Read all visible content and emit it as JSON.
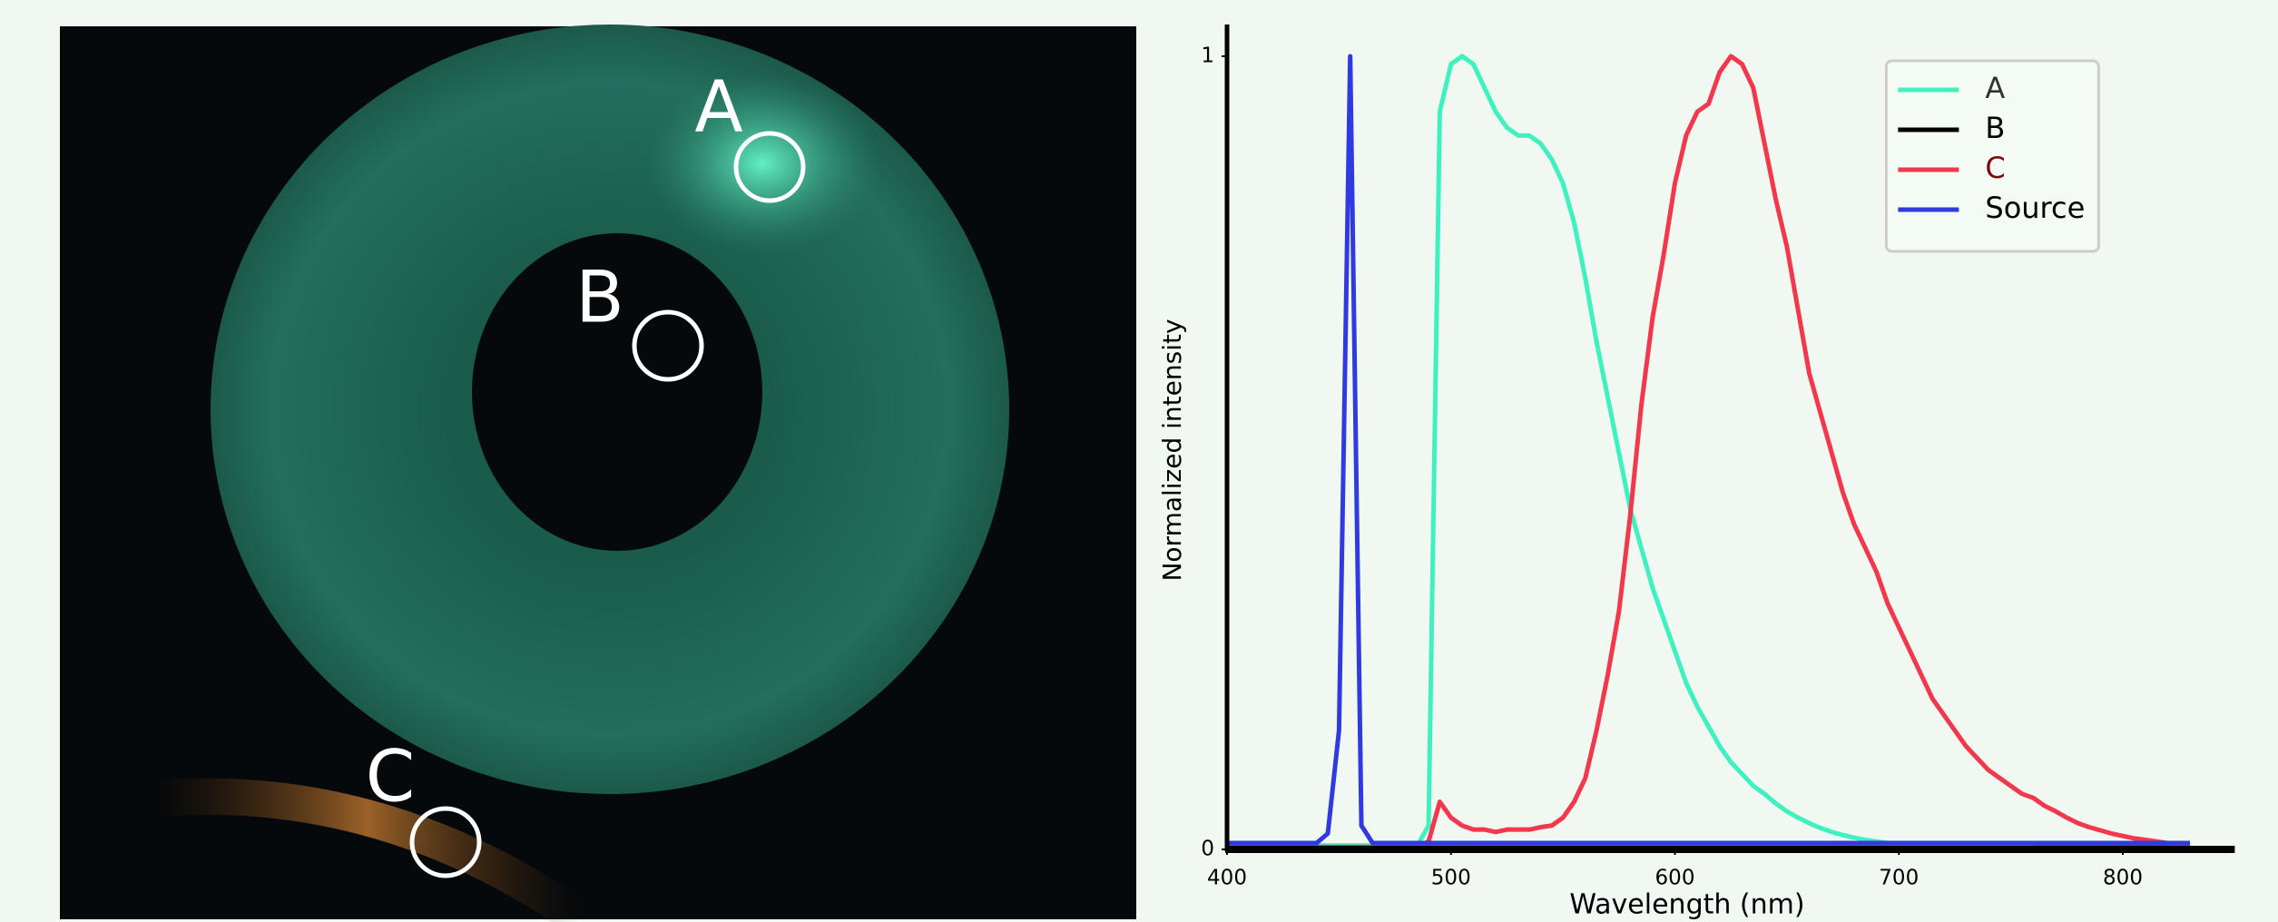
{
  "image": {
    "labels": [
      "A",
      "B",
      "C"
    ]
  },
  "chart_data": {
    "type": "line",
    "xlabel": "Wavelength  (nm)",
    "ylabel": "Normalized intensity",
    "xlim": [
      400,
      850
    ],
    "ylim": [
      0,
      1.04
    ],
    "xticks": [
      400,
      500,
      600,
      700,
      800
    ],
    "yticks": [
      0,
      1
    ],
    "legend": "upper right",
    "x": [
      400,
      405,
      410,
      415,
      420,
      425,
      430,
      435,
      440,
      445,
      450,
      455,
      460,
      465,
      470,
      475,
      480,
      485,
      490,
      495,
      500,
      505,
      510,
      515,
      520,
      525,
      530,
      535,
      540,
      545,
      550,
      555,
      560,
      565,
      570,
      575,
      580,
      585,
      590,
      595,
      600,
      605,
      610,
      615,
      620,
      625,
      630,
      635,
      640,
      645,
      650,
      655,
      660,
      665,
      670,
      675,
      680,
      685,
      690,
      695,
      700,
      705,
      710,
      715,
      720,
      725,
      730,
      735,
      740,
      745,
      750,
      755,
      760,
      765,
      770,
      775,
      780,
      785,
      790,
      795,
      800,
      805,
      810,
      815,
      820,
      825,
      830
    ],
    "series": [
      {
        "name": "A",
        "color": "#3ff0c0",
        "label_color": "#333333",
        "values": [
          0.005,
          0.005,
          0.005,
          0.005,
          0.005,
          0.005,
          0.005,
          0.005,
          0.005,
          0.005,
          0.005,
          0.005,
          0.005,
          0.005,
          0.005,
          0.005,
          0.005,
          0.005,
          0.03,
          0.93,
          0.99,
          1.0,
          0.99,
          0.96,
          0.93,
          0.91,
          0.9,
          0.9,
          0.89,
          0.87,
          0.84,
          0.79,
          0.72,
          0.64,
          0.57,
          0.5,
          0.43,
          0.38,
          0.33,
          0.29,
          0.25,
          0.21,
          0.18,
          0.155,
          0.13,
          0.11,
          0.095,
          0.08,
          0.07,
          0.058,
          0.048,
          0.04,
          0.033,
          0.027,
          0.022,
          0.018,
          0.015,
          0.012,
          0.01,
          0.008,
          0.008,
          0.008,
          0.008,
          0.008,
          0.008,
          0.008,
          0.008,
          0.008,
          0.008,
          0.008,
          0.008,
          0.008,
          0.008,
          0.006,
          0.006,
          0.006,
          0.006,
          0.006,
          0.006,
          0.006,
          0.006,
          0.006,
          0.006,
          0.006,
          0.006,
          0.006,
          0.006
        ]
      },
      {
        "name": "B",
        "color": "#000000",
        "label_color": "#000000",
        "values": [
          0.002,
          0.002,
          0.002,
          0.002,
          0.002,
          0.002,
          0.002,
          0.002,
          0.002,
          0.002,
          0.002,
          0.002,
          0.002,
          0.002,
          0.002,
          0.002,
          0.002,
          0.002,
          0.002,
          0.002,
          0.002,
          0.002,
          0.002,
          0.002,
          0.002,
          0.002,
          0.002,
          0.002,
          0.002,
          0.002,
          0.002,
          0.002,
          0.002,
          0.002,
          0.002,
          0.002,
          0.002,
          0.002,
          0.002,
          0.002,
          0.002,
          0.002,
          0.002,
          0.002,
          0.002,
          0.002,
          0.002,
          0.002,
          0.002,
          0.002,
          0.002,
          0.002,
          0.002,
          0.002,
          0.002,
          0.002,
          0.002,
          0.002,
          0.002,
          0.002,
          0.002,
          0.002,
          0.002,
          0.002,
          0.002,
          0.002,
          0.002,
          0.002,
          0.002,
          0.002,
          0.002,
          0.002,
          0.002,
          0.002,
          0.002,
          0.002,
          0.002,
          0.002,
          0.002,
          0.002,
          0.002,
          0.002,
          0.002,
          0.002,
          0.002,
          0.002,
          0.002
        ]
      },
      {
        "name": "C",
        "color": "#f2384c",
        "label_color": "#7a0a10",
        "values": [
          0.003,
          0.003,
          0.003,
          0.003,
          0.003,
          0.003,
          0.003,
          0.003,
          0.003,
          0.003,
          0.003,
          0.003,
          0.003,
          0.003,
          0.003,
          0.003,
          0.003,
          0.003,
          0.01,
          0.06,
          0.04,
          0.03,
          0.025,
          0.025,
          0.022,
          0.025,
          0.025,
          0.025,
          0.028,
          0.03,
          0.04,
          0.06,
          0.09,
          0.15,
          0.22,
          0.3,
          0.42,
          0.56,
          0.67,
          0.75,
          0.84,
          0.9,
          0.93,
          0.94,
          0.98,
          1.0,
          0.99,
          0.96,
          0.89,
          0.82,
          0.76,
          0.68,
          0.6,
          0.55,
          0.5,
          0.45,
          0.41,
          0.38,
          0.35,
          0.31,
          0.28,
          0.25,
          0.22,
          0.19,
          0.17,
          0.15,
          0.13,
          0.115,
          0.1,
          0.09,
          0.08,
          0.07,
          0.065,
          0.055,
          0.048,
          0.04,
          0.033,
          0.028,
          0.024,
          0.02,
          0.017,
          0.014,
          0.012,
          0.01,
          0.008,
          0.007,
          0.007
        ]
      },
      {
        "name": "Source",
        "color": "#2f3ae0",
        "label_color": "#000000",
        "values": [
          0.008,
          0.008,
          0.008,
          0.008,
          0.008,
          0.008,
          0.008,
          0.008,
          0.008,
          0.02,
          0.15,
          1.0,
          0.03,
          0.008,
          0.008,
          0.008,
          0.008,
          0.008,
          0.008,
          0.008,
          0.008,
          0.008,
          0.008,
          0.008,
          0.008,
          0.008,
          0.008,
          0.008,
          0.008,
          0.008,
          0.008,
          0.008,
          0.008,
          0.008,
          0.008,
          0.008,
          0.008,
          0.008,
          0.008,
          0.008,
          0.008,
          0.008,
          0.008,
          0.008,
          0.008,
          0.008,
          0.008,
          0.008,
          0.008,
          0.008,
          0.008,
          0.008,
          0.008,
          0.008,
          0.008,
          0.008,
          0.008,
          0.008,
          0.008,
          0.008,
          0.008,
          0.008,
          0.008,
          0.008,
          0.008,
          0.008,
          0.008,
          0.008,
          0.008,
          0.008,
          0.008,
          0.008,
          0.008,
          0.008,
          0.008,
          0.008,
          0.008,
          0.008,
          0.008,
          0.008,
          0.008,
          0.008,
          0.008,
          0.008,
          0.008,
          0.008,
          0.008
        ]
      }
    ]
  }
}
